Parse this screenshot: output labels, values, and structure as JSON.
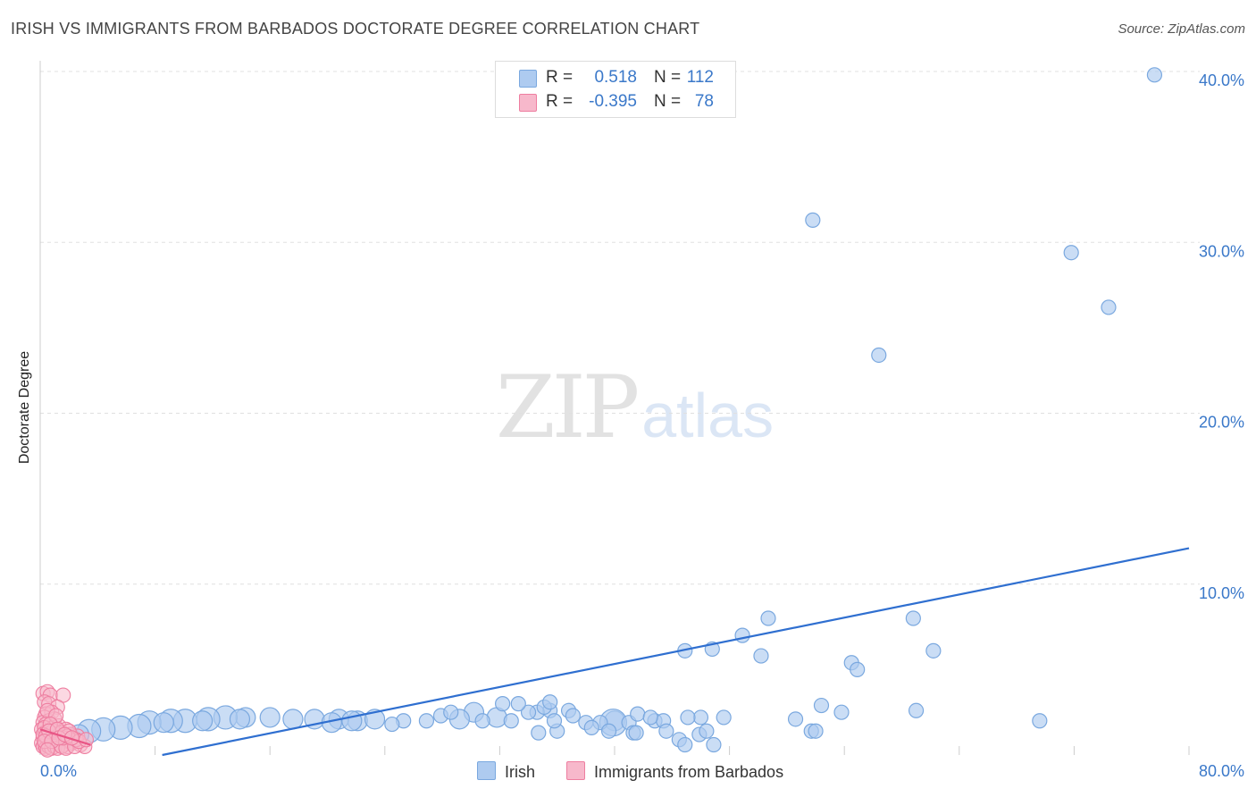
{
  "title": "IRISH VS IMMIGRANTS FROM BARBADOS DOCTORATE DEGREE CORRELATION CHART",
  "source": "Source: ZipAtlas.com",
  "watermark": {
    "zip": "ZIP",
    "atlas": "atlas"
  },
  "stats": {
    "irish": {
      "r_label": "R =",
      "r_value": "0.518",
      "n_label": "N =",
      "n_value": "112"
    },
    "barbados": {
      "r_label": "R =",
      "r_value": "-0.395",
      "n_label": "N =",
      "n_value": "78"
    }
  },
  "colors": {
    "irish_fill": "#aecbf0",
    "irish_stroke": "#7aa8df",
    "irish_line": "#2f6fd0",
    "barbados_fill": "#f7b8cb",
    "barbados_stroke": "#ee7ea0",
    "barbados_line": "#e85585",
    "tick_text": "#3a78c9",
    "grid": "#e0e0e0"
  },
  "chart_data": {
    "type": "scatter",
    "title": "IRISH VS IMMIGRANTS FROM BARBADOS DOCTORATE DEGREE CORRELATION CHART",
    "xlabel": "",
    "ylabel": "Doctorate Degree",
    "xlim": [
      0,
      80
    ],
    "ylim": [
      0,
      40
    ],
    "x_tick_labels": [
      "0.0%",
      "80.0%"
    ],
    "y_ticks": [
      10,
      20,
      30,
      40
    ],
    "y_tick_labels": [
      "10.0%",
      "20.0%",
      "30.0%",
      "40.0%"
    ],
    "grid": true,
    "legend_position": "bottom",
    "series": [
      {
        "name": "Irish",
        "r": 0.518,
        "n": 112,
        "trend": {
          "x0": 8.5,
          "y0": 0,
          "x1": 80,
          "y1": 12.1
        },
        "points": [
          [
            40.0,
            2.0,
            2
          ],
          [
            39.9,
            1.9,
            4
          ],
          [
            36.8,
            2.6,
            1
          ],
          [
            35.5,
            2.6,
            1
          ],
          [
            34.6,
            2.5,
            1
          ],
          [
            31.8,
            2.2,
            2
          ],
          [
            30.2,
            2.5,
            2
          ],
          [
            29.2,
            2.1,
            2
          ],
          [
            26.9,
            2.0,
            1
          ],
          [
            25.3,
            2.0,
            1
          ],
          [
            24.5,
            1.8,
            1
          ],
          [
            22.1,
            2.0,
            2
          ],
          [
            20.8,
            2.1,
            2
          ],
          [
            19.1,
            2.1,
            2
          ],
          [
            17.6,
            2.1,
            2
          ],
          [
            16.0,
            2.2,
            2
          ],
          [
            14.3,
            2.2,
            2
          ],
          [
            12.9,
            2.2,
            3
          ],
          [
            11.7,
            2.1,
            3
          ],
          [
            10.1,
            2.0,
            3
          ],
          [
            9.1,
            2.0,
            3
          ],
          [
            7.6,
            1.9,
            3
          ],
          [
            6.9,
            1.7,
            3
          ],
          [
            5.6,
            1.6,
            3
          ],
          [
            4.4,
            1.5,
            3
          ],
          [
            3.4,
            1.4,
            3
          ],
          [
            2.7,
            1.2,
            2
          ],
          [
            13.9,
            2.1,
            2
          ],
          [
            11.3,
            2.0,
            2
          ],
          [
            8.6,
            1.9,
            2
          ],
          [
            21.7,
            2.0,
            2
          ],
          [
            23.3,
            2.1,
            2
          ],
          [
            20.3,
            1.9,
            2
          ],
          [
            27.9,
            2.3,
            1
          ],
          [
            28.6,
            2.5,
            1
          ],
          [
            30.8,
            2.0,
            1
          ],
          [
            32.8,
            2.0,
            1
          ],
          [
            34.0,
            2.5,
            1
          ],
          [
            37.1,
            2.3,
            1
          ],
          [
            39.0,
            1.9,
            1
          ],
          [
            41.0,
            1.9,
            1
          ],
          [
            42.8,
            2.0,
            1
          ],
          [
            43.4,
            2.0,
            1
          ],
          [
            46.0,
            2.2,
            1
          ],
          [
            41.6,
            2.4,
            1
          ],
          [
            45.1,
            2.2,
            1
          ],
          [
            38.0,
            1.9,
            1
          ],
          [
            36.0,
            1.4,
            1
          ],
          [
            34.7,
            1.3,
            1
          ],
          [
            35.8,
            2.0,
            1
          ],
          [
            32.2,
            3.0,
            1
          ],
          [
            33.3,
            3.0,
            1
          ],
          [
            35.1,
            2.8,
            1
          ],
          [
            35.5,
            3.1,
            1
          ],
          [
            38.4,
            1.6,
            1
          ],
          [
            39.6,
            1.4,
            1
          ],
          [
            42.5,
            2.2,
            1
          ],
          [
            43.6,
            1.4,
            1
          ],
          [
            44.5,
            0.9,
            1
          ],
          [
            44.9,
            0.6,
            1
          ],
          [
            45.9,
            1.2,
            1
          ],
          [
            46.4,
            1.4,
            1
          ],
          [
            46.9,
            0.6,
            1
          ],
          [
            41.3,
            1.3,
            1
          ],
          [
            41.5,
            1.3,
            1
          ],
          [
            44.9,
            6.1,
            1
          ],
          [
            46.8,
            6.2,
            1
          ],
          [
            48.9,
            7.0,
            1
          ],
          [
            50.7,
            8.0,
            1
          ],
          [
            50.2,
            5.8,
            1
          ],
          [
            47.6,
            2.2,
            1
          ],
          [
            52.6,
            2.1,
            1
          ],
          [
            53.7,
            1.4,
            1
          ],
          [
            54.0,
            1.4,
            1
          ],
          [
            56.5,
            5.4,
            1
          ],
          [
            56.9,
            5.0,
            1
          ],
          [
            60.8,
            8.0,
            1
          ],
          [
            61.0,
            2.6,
            1
          ],
          [
            62.2,
            6.1,
            1
          ],
          [
            54.4,
            2.9,
            1
          ],
          [
            55.8,
            2.5,
            1
          ],
          [
            69.6,
            2.0,
            1
          ],
          [
            53.8,
            31.3,
            1
          ],
          [
            71.8,
            29.4,
            1
          ],
          [
            74.4,
            26.2,
            1
          ],
          [
            58.4,
            23.4,
            1
          ],
          [
            77.6,
            39.8,
            1
          ]
        ]
      },
      {
        "name": "Immigrants from Barbados",
        "r": -0.395,
        "n": 78,
        "trend": {
          "x0": 0,
          "y0": 1.5,
          "x1": 3.5,
          "y1": 0.6
        },
        "points": [
          [
            0.2,
            3.6
          ],
          [
            0.5,
            3.7
          ],
          [
            0.7,
            3.5
          ],
          [
            1.6,
            3.5
          ],
          [
            0.3,
            3.1
          ],
          [
            0.6,
            3.0
          ],
          [
            1.2,
            2.8
          ],
          [
            0.4,
            2.4
          ],
          [
            0.8,
            2.5
          ],
          [
            0.3,
            2.2
          ],
          [
            0.6,
            2.0
          ],
          [
            1.0,
            2.1
          ],
          [
            0.2,
            1.9
          ],
          [
            0.4,
            1.8
          ],
          [
            0.9,
            1.6
          ],
          [
            1.3,
            1.7
          ],
          [
            1.8,
            1.5
          ],
          [
            0.1,
            1.5
          ],
          [
            0.3,
            1.3
          ],
          [
            0.5,
            1.2
          ],
          [
            0.7,
            1.3
          ],
          [
            1.1,
            1.2
          ],
          [
            1.5,
            1.1
          ],
          [
            2.1,
            1.2
          ],
          [
            2.6,
            1.1
          ],
          [
            0.2,
            1.0
          ],
          [
            0.4,
            0.9
          ],
          [
            0.6,
            0.9
          ],
          [
            0.8,
            1.0
          ],
          [
            1.0,
            0.9
          ],
          [
            1.2,
            0.8
          ],
          [
            1.4,
            0.9
          ],
          [
            1.7,
            0.8
          ],
          [
            2.0,
            0.9
          ],
          [
            2.3,
            0.8
          ],
          [
            0.1,
            0.7
          ],
          [
            0.3,
            0.6
          ],
          [
            0.5,
            0.7
          ],
          [
            0.7,
            0.6
          ],
          [
            0.9,
            0.7
          ],
          [
            1.1,
            0.6
          ],
          [
            1.3,
            0.7
          ],
          [
            1.6,
            0.6
          ],
          [
            1.9,
            0.5
          ],
          [
            2.2,
            0.7
          ],
          [
            2.8,
            0.6
          ],
          [
            3.1,
            0.5
          ],
          [
            0.2,
            0.5
          ],
          [
            0.4,
            0.4
          ],
          [
            0.6,
            0.5
          ],
          [
            0.8,
            0.4
          ],
          [
            1.0,
            0.5
          ],
          [
            1.2,
            0.4
          ],
          [
            1.5,
            0.5
          ],
          [
            1.8,
            0.4
          ],
          [
            2.4,
            0.5
          ],
          [
            0.3,
            1.6
          ],
          [
            0.9,
            1.4
          ],
          [
            1.4,
            1.3
          ],
          [
            2.0,
            1.4
          ],
          [
            0.5,
            2.6
          ],
          [
            1.1,
            2.3
          ],
          [
            0.7,
            1.8
          ],
          [
            1.6,
            1.0
          ],
          [
            2.5,
            0.9
          ],
          [
            0.2,
            1.2
          ],
          [
            0.4,
            1.1
          ],
          [
            0.6,
            1.4
          ],
          [
            1.2,
            1.5
          ],
          [
            1.9,
            1.1
          ],
          [
            2.7,
            0.8
          ],
          [
            3.2,
            0.9
          ],
          [
            0.3,
            0.8
          ],
          [
            0.8,
            0.8
          ],
          [
            1.3,
            1.0
          ],
          [
            1.7,
            1.2
          ],
          [
            2.2,
            1.0
          ],
          [
            0.5,
            0.3
          ]
        ]
      }
    ]
  },
  "legend": {
    "irish": "Irish",
    "barbados": "Immigrants from Barbados"
  }
}
